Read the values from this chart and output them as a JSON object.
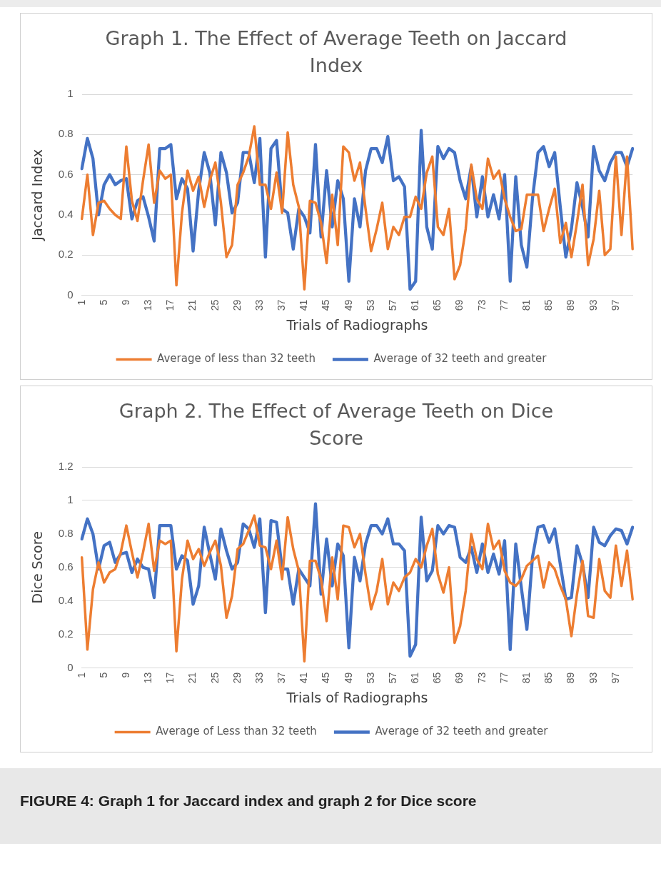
{
  "chart_data": [
    {
      "type": "line",
      "title": "Graph 1. The Effect of Average Teeth on Jaccard Index",
      "xlabel": "Trials of Radiographs",
      "ylabel": "Jaccard Index",
      "categories": [
        "1",
        null,
        null,
        null,
        "5",
        null,
        null,
        null,
        "9",
        null,
        null,
        null,
        "13",
        null,
        null,
        null,
        "17",
        null,
        null,
        null,
        "21",
        null,
        null,
        null,
        "25",
        null,
        null,
        null,
        "29",
        null,
        null,
        null,
        "33",
        null,
        null,
        null,
        "37",
        null,
        null,
        null,
        "41",
        null,
        null,
        null,
        "45",
        null,
        null,
        null,
        "49",
        null,
        null,
        null,
        "53",
        null,
        null,
        null,
        "57",
        null,
        null,
        null,
        "61",
        null,
        null,
        null,
        "65",
        null,
        null,
        null,
        "69",
        null,
        null,
        null,
        "73",
        null,
        null,
        null,
        "77",
        null,
        null,
        null,
        "81",
        null,
        null,
        null,
        "85",
        null,
        null,
        null,
        "89",
        null,
        null,
        null,
        "93",
        null,
        null,
        null,
        "97",
        null,
        null,
        null
      ],
      "series": [
        {
          "name": "Average of 32 teeth and greater",
          "color": "#4472c4",
          "values": [
            0.63,
            0.78,
            0.68,
            0.4,
            0.55,
            0.6,
            0.55,
            0.57,
            0.58,
            0.38,
            0.47,
            0.49,
            0.39,
            0.27,
            0.73,
            0.73,
            0.75,
            0.48,
            0.58,
            0.53,
            0.22,
            0.52,
            0.71,
            0.61,
            0.35,
            0.71,
            0.61,
            0.41,
            0.46,
            0.71,
            0.71,
            0.56,
            0.78,
            0.19,
            0.73,
            0.77,
            0.43,
            0.41,
            0.23,
            0.43,
            0.39,
            0.31,
            0.75,
            0.29,
            0.62,
            0.34,
            0.57,
            0.48,
            0.07,
            0.48,
            0.34,
            0.62,
            0.73,
            0.73,
            0.66,
            0.79,
            0.57,
            0.59,
            0.54,
            0.03,
            0.07,
            0.82,
            0.34,
            0.23,
            0.74,
            0.68,
            0.73,
            0.71,
            0.57,
            0.48,
            0.64,
            0.39,
            0.59,
            0.39,
            0.5,
            0.38,
            0.6,
            0.07,
            0.59,
            0.25,
            0.14,
            0.48,
            0.71,
            0.74,
            0.64,
            0.71,
            0.44,
            0.19,
            0.33,
            0.56,
            0.44,
            0.29,
            0.74,
            0.62,
            0.57,
            0.66,
            0.71,
            0.71,
            0.64,
            0.73
          ]
        },
        {
          "name": "Average of less than 32 teeth",
          "color": "#ed7d31",
          "values": [
            0.38,
            0.6,
            0.3,
            0.46,
            0.47,
            0.43,
            0.4,
            0.38,
            0.74,
            0.47,
            0.37,
            0.57,
            0.75,
            0.46,
            0.62,
            0.58,
            0.6,
            0.05,
            0.41,
            0.62,
            0.52,
            0.59,
            0.44,
            0.57,
            0.66,
            0.46,
            0.19,
            0.25,
            0.55,
            0.61,
            0.69,
            0.84,
            0.55,
            0.55,
            0.43,
            0.61,
            0.41,
            0.81,
            0.55,
            0.44,
            0.03,
            0.47,
            0.46,
            0.36,
            0.16,
            0.5,
            0.25,
            0.74,
            0.71,
            0.57,
            0.66,
            0.43,
            0.22,
            0.33,
            0.46,
            0.23,
            0.34,
            0.3,
            0.39,
            0.39,
            0.49,
            0.43,
            0.61,
            0.69,
            0.34,
            0.3,
            0.43,
            0.08,
            0.15,
            0.33,
            0.65,
            0.48,
            0.43,
            0.68,
            0.58,
            0.62,
            0.48,
            0.39,
            0.32,
            0.33,
            0.5,
            0.5,
            0.5,
            0.32,
            0.43,
            0.53,
            0.26,
            0.36,
            0.19,
            0.36,
            0.55,
            0.15,
            0.28,
            0.52,
            0.2,
            0.23,
            0.69,
            0.3,
            0.69,
            0.23
          ]
        }
      ],
      "ylim": [
        0,
        1
      ],
      "yticks": [
        0,
        0.2,
        0.4,
        0.6,
        0.8,
        1
      ],
      "grid": "y",
      "legend": "bottom",
      "marker": "none",
      "line_style": "solid"
    },
    {
      "type": "line",
      "title": "Graph 2. The Effect of Average Teeth on Dice Score",
      "xlabel": "Trials of Radiographs",
      "ylabel": "Dice Score",
      "categories": [
        "1",
        null,
        null,
        null,
        "5",
        null,
        null,
        null,
        "9",
        null,
        null,
        null,
        "13",
        null,
        null,
        null,
        "17",
        null,
        null,
        null,
        "21",
        null,
        null,
        null,
        "25",
        null,
        null,
        null,
        "29",
        null,
        null,
        null,
        "33",
        null,
        null,
        null,
        "37",
        null,
        null,
        null,
        "41",
        null,
        null,
        null,
        "45",
        null,
        null,
        null,
        "49",
        null,
        null,
        null,
        "53",
        null,
        null,
        null,
        "57",
        null,
        null,
        null,
        "61",
        null,
        null,
        null,
        "65",
        null,
        null,
        null,
        "69",
        null,
        null,
        null,
        "73",
        null,
        null,
        null,
        "77",
        null,
        null,
        null,
        "81",
        null,
        null,
        null,
        "85",
        null,
        null,
        null,
        "89",
        null,
        null,
        null,
        "93",
        null,
        null,
        null,
        "97",
        null,
        null,
        null
      ],
      "series": [
        {
          "name": "Average of 32 teeth and greater",
          "color": "#4472c4",
          "values": [
            0.77,
            0.89,
            0.8,
            0.59,
            0.73,
            0.75,
            0.63,
            0.68,
            0.69,
            0.57,
            0.65,
            0.6,
            0.59,
            0.42,
            0.85,
            0.85,
            0.85,
            0.59,
            0.67,
            0.64,
            0.38,
            0.49,
            0.84,
            0.68,
            0.53,
            0.83,
            0.7,
            0.59,
            0.63,
            0.86,
            0.83,
            0.72,
            0.89,
            0.33,
            0.88,
            0.87,
            0.59,
            0.59,
            0.38,
            0.59,
            0.54,
            0.49,
            0.98,
            0.44,
            0.77,
            0.49,
            0.74,
            0.67,
            0.12,
            0.66,
            0.52,
            0.74,
            0.85,
            0.85,
            0.8,
            0.89,
            0.74,
            0.74,
            0.7,
            0.07,
            0.14,
            0.9,
            0.52,
            0.58,
            0.85,
            0.8,
            0.85,
            0.84,
            0.66,
            0.63,
            0.72,
            0.57,
            0.74,
            0.57,
            0.68,
            0.56,
            0.76,
            0.11,
            0.74,
            0.48,
            0.23,
            0.66,
            0.84,
            0.85,
            0.75,
            0.83,
            0.62,
            0.41,
            0.42,
            0.73,
            0.62,
            0.42,
            0.84,
            0.75,
            0.73,
            0.79,
            0.83,
            0.82,
            0.74,
            0.84
          ]
        },
        {
          "name": "Average of Less than 32 teeth",
          "color": "#ed7d31",
          "values": [
            0.66,
            0.11,
            0.47,
            0.63,
            0.51,
            0.57,
            0.59,
            0.69,
            0.85,
            0.69,
            0.54,
            0.69,
            0.86,
            0.58,
            0.76,
            0.74,
            0.76,
            0.1,
            0.53,
            0.76,
            0.65,
            0.71,
            0.61,
            0.69,
            0.76,
            0.61,
            0.3,
            0.43,
            0.71,
            0.74,
            0.82,
            0.91,
            0.73,
            0.72,
            0.59,
            0.76,
            0.53,
            0.9,
            0.71,
            0.58,
            0.04,
            0.64,
            0.64,
            0.53,
            0.28,
            0.66,
            0.41,
            0.85,
            0.84,
            0.72,
            0.8,
            0.56,
            0.35,
            0.46,
            0.65,
            0.38,
            0.51,
            0.46,
            0.54,
            0.57,
            0.65,
            0.6,
            0.73,
            0.83,
            0.56,
            0.45,
            0.6,
            0.15,
            0.25,
            0.46,
            0.8,
            0.65,
            0.59,
            0.86,
            0.71,
            0.76,
            0.58,
            0.51,
            0.49,
            0.53,
            0.61,
            0.64,
            0.67,
            0.48,
            0.63,
            0.59,
            0.49,
            0.41,
            0.19,
            0.44,
            0.64,
            0.31,
            0.3,
            0.65,
            0.46,
            0.42,
            0.73,
            0.49,
            0.7,
            0.41
          ]
        }
      ],
      "ylim": [
        0,
        1.2
      ],
      "yticks": [
        0,
        0.2,
        0.4,
        0.6,
        0.8,
        1,
        1.2
      ],
      "grid": "y",
      "legend": "bottom",
      "marker": "none",
      "line_style": "solid",
      "annotations": [
        "FIGURE 4: Graph 1 for Jaccard index and graph 2 for Dice score"
      ]
    }
  ]
}
